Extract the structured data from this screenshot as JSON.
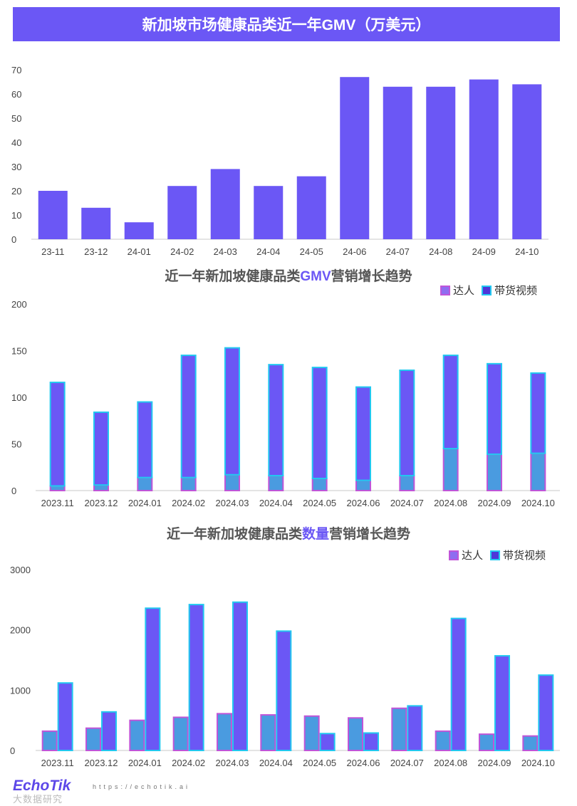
{
  "header": {
    "title": "新加坡市场健康品类近一年GMV（万美元）"
  },
  "chart_data": [
    {
      "type": "bar",
      "title": "新加坡市场健康品类近一年GMV（万美元）",
      "categories": [
        "23-11",
        "23-12",
        "24-01",
        "24-02",
        "24-03",
        "24-04",
        "24-05",
        "24-06",
        "24-07",
        "24-08",
        "24-09",
        "24-10"
      ],
      "values": [
        20,
        13,
        7,
        22,
        29,
        22,
        26,
        67,
        63,
        63,
        66,
        64
      ],
      "ylim": [
        0,
        70
      ],
      "yticks": [
        0,
        10,
        20,
        30,
        40,
        50,
        60,
        70
      ],
      "color": "#6b57f5"
    },
    {
      "type": "bar",
      "stacked": true,
      "title_parts": [
        "近一年新加坡健康品类",
        "GMV",
        "营销增长趋势"
      ],
      "categories": [
        "2023.11",
        "2023.12",
        "2024.01",
        "2024.02",
        "2024.03",
        "2024.04",
        "2024.05",
        "2024.06",
        "2024.07",
        "2024.08",
        "2024.09",
        "2024.10"
      ],
      "series": [
        {
          "name": "达人",
          "values": [
            5,
            6,
            14,
            14,
            17,
            16,
            13,
            11,
            16,
            45,
            39,
            40
          ],
          "fill": "#4a9be0",
          "stroke": "#c055d8"
        },
        {
          "name": "带货视频",
          "values": [
            111,
            78,
            81,
            131,
            136,
            119,
            119,
            100,
            113,
            100,
            97,
            86
          ],
          "fill": "#6b57f5",
          "stroke": "#22c8f0"
        }
      ],
      "ylim": [
        0,
        200
      ],
      "yticks": [
        0,
        50,
        100,
        150,
        200
      ],
      "legend": "top-right"
    },
    {
      "type": "bar",
      "grouped": true,
      "title_parts": [
        "近一年新加坡健康品类",
        "数量",
        "营销增长趋势"
      ],
      "categories": [
        "2023.11",
        "2023.12",
        "2024.01",
        "2024.02",
        "2024.03",
        "2024.04",
        "2024.05",
        "2024.06",
        "2024.07",
        "2024.08",
        "2024.09",
        "2024.10"
      ],
      "series": [
        {
          "name": "达人",
          "values": [
            320,
            370,
            500,
            550,
            610,
            590,
            570,
            540,
            700,
            320,
            270,
            240
          ],
          "fill": "#4a9be0",
          "stroke": "#c055d8"
        },
        {
          "name": "带货视频",
          "values": [
            1120,
            640,
            2360,
            2420,
            2460,
            1980,
            280,
            290,
            740,
            2190,
            1570,
            1250
          ],
          "fill": "#6b57f5",
          "stroke": "#22c8f0"
        }
      ],
      "ylim": [
        0,
        3000
      ],
      "yticks": [
        0,
        1000,
        2000,
        3000
      ],
      "legend": "top-right"
    }
  ],
  "footer": {
    "logo": "EchoTik",
    "url": "https://echotik.ai",
    "sub": "大数据研究"
  }
}
